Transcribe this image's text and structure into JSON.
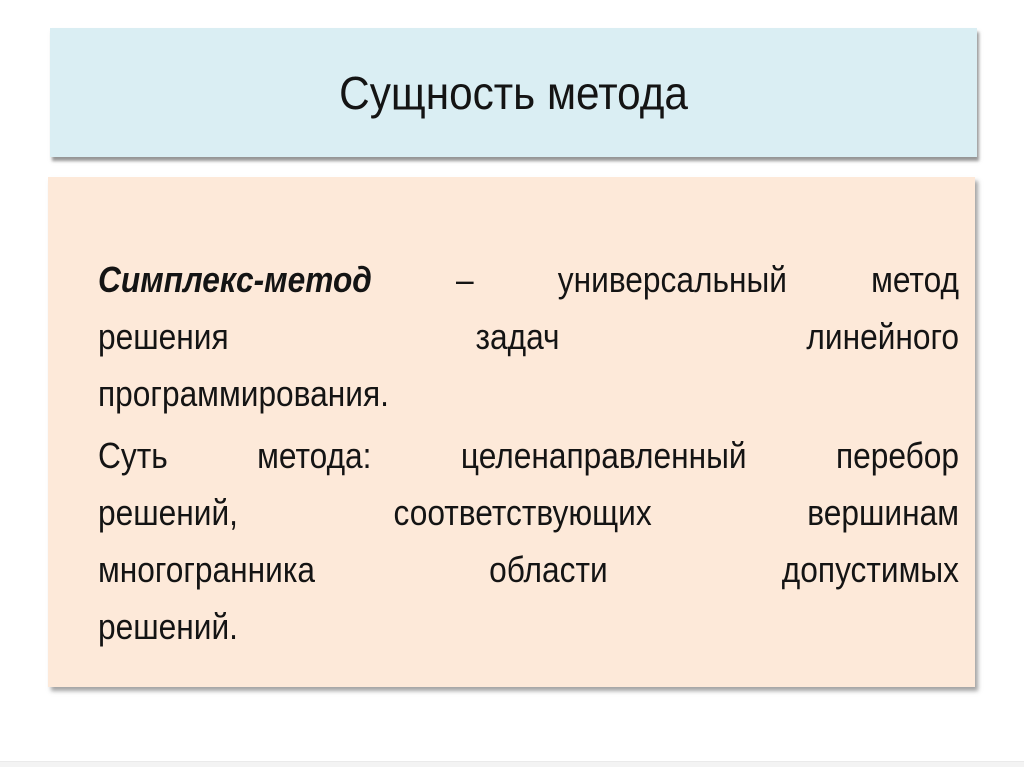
{
  "slide": {
    "title": "Сущность метода",
    "colors": {
      "title_bg": "#daeef3",
      "body_bg": "#fde9d9",
      "text": "#141414",
      "shadow": "#5a5a5a"
    },
    "body": {
      "paragraphs": [
        {
          "lines": [
            {
              "runs": [
                {
                  "t": "Симплекс-метод",
                  "em": true
                },
                {
                  "t": " – универсальный метод",
                  "em": false
                }
              ],
              "last": false
            },
            {
              "runs": [
                {
                  "t": "решения задач линейного",
                  "em": false
                }
              ],
              "last": false
            },
            {
              "runs": [
                {
                  "t": "программирования.",
                  "em": false
                }
              ],
              "last": true
            }
          ]
        },
        {
          "lines": [
            {
              "runs": [
                {
                  "t": "Суть метода: целенаправленный перебор",
                  "em": false
                }
              ],
              "last": false
            },
            {
              "runs": [
                {
                  "t": "решений, соответствующих вершинам",
                  "em": false
                }
              ],
              "last": false
            },
            {
              "runs": [
                {
                  "t": "многогранника области допустимых",
                  "em": false
                }
              ],
              "last": false
            },
            {
              "runs": [
                {
                  "t": "решений.",
                  "em": false
                }
              ],
              "last": true
            }
          ]
        }
      ]
    }
  }
}
